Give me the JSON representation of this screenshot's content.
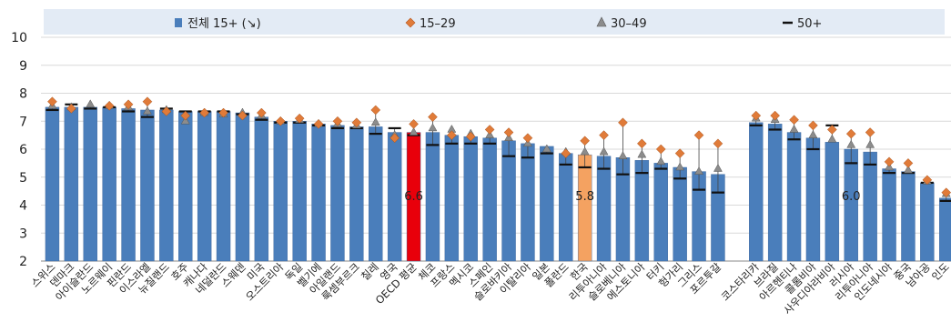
{
  "colors": {
    "total": "#4a7ebb",
    "oecd": "#e8000b",
    "korea": "#f4a261",
    "diamond": "#e07b39",
    "triangle": "#8c8c8c",
    "dash": "#111111",
    "legend_bg": "#e3ebf5",
    "grid": "#d9d9d9"
  },
  "chart_data": {
    "type": "bar",
    "ylim": [
      2,
      10
    ],
    "yticks": [
      "2",
      "3",
      "4",
      "5",
      "6",
      "7",
      "8",
      "9",
      "10"
    ],
    "legend": [
      {
        "label": "전체 15+ (↘)",
        "marker": "bar"
      },
      {
        "label": "15–29",
        "marker": "diamond"
      },
      {
        "label": "30–49",
        "marker": "triangle"
      },
      {
        "label": "50+",
        "marker": "dash"
      }
    ],
    "categories": [
      "스위스",
      "덴마크",
      "아이슬란드",
      "노르웨이",
      "핀란드",
      "이스라엘",
      "뉴질랜드",
      "호주",
      "캐나다",
      "네덜란드",
      "스웨덴",
      "미국",
      "오스트리아",
      "독일",
      "벨기에",
      "아일랜드",
      "룩셈부르크",
      "칠레",
      "영국",
      "OECD 평균",
      "체코",
      "프랑스",
      "멕시코",
      "스페인",
      "슬로바키아",
      "이탈리아",
      "일본",
      "폴란드",
      "한국",
      "리투아니아",
      "슬로베니아",
      "에스토니아",
      "터키",
      "헝가리",
      "그리스",
      "포르투갈",
      "",
      "코스타리카",
      "브라질",
      "아르헨티나",
      "콜롬비아",
      "사우디아라비아",
      "러시아",
      "리투아니아",
      "인도네시아",
      "중국",
      "남아공",
      "인도"
    ],
    "series": [
      {
        "name": "전체 15+ (↘)",
        "values": [
          7.5,
          7.5,
          7.5,
          7.5,
          7.45,
          7.4,
          7.4,
          7.35,
          7.35,
          7.35,
          7.3,
          7.15,
          7.0,
          7.0,
          6.9,
          6.85,
          6.8,
          6.8,
          6.6,
          6.6,
          6.6,
          6.5,
          6.45,
          6.4,
          6.3,
          6.2,
          6.1,
          5.85,
          5.8,
          5.75,
          5.7,
          5.6,
          5.5,
          5.35,
          5.2,
          5.1,
          null,
          6.95,
          6.9,
          6.6,
          6.4,
          6.25,
          6.0,
          5.9,
          5.3,
          5.2,
          4.8,
          4.25
        ]
      },
      {
        "name": "15–29",
        "values": [
          7.7,
          7.45,
          null,
          7.55,
          7.6,
          7.7,
          7.35,
          7.2,
          7.3,
          7.3,
          7.2,
          7.3,
          7.0,
          7.1,
          6.9,
          7.0,
          6.95,
          7.4,
          6.4,
          6.9,
          7.15,
          6.5,
          6.45,
          6.7,
          6.6,
          6.4,
          null,
          5.85,
          6.3,
          6.5,
          6.95,
          6.2,
          6.0,
          5.85,
          6.5,
          6.2,
          null,
          7.2,
          7.2,
          7.05,
          6.85,
          6.7,
          6.55,
          6.6,
          5.55,
          5.5,
          4.9,
          4.45
        ]
      },
      {
        "name": "30–49",
        "values": [
          7.55,
          7.5,
          7.6,
          7.55,
          7.5,
          7.35,
          7.4,
          7.0,
          7.3,
          7.25,
          7.3,
          7.2,
          7.0,
          7.05,
          6.9,
          6.9,
          6.85,
          6.95,
          6.5,
          6.6,
          6.75,
          6.7,
          6.55,
          6.5,
          6.4,
          6.2,
          6.0,
          5.9,
          5.9,
          5.9,
          5.75,
          5.8,
          5.55,
          5.35,
          5.2,
          5.3,
          null,
          7.1,
          7.05,
          6.7,
          6.5,
          6.35,
          6.15,
          6.15,
          5.35,
          5.25,
          4.85,
          4.4
        ]
      },
      {
        "name": "50+",
        "values": [
          7.4,
          7.6,
          7.45,
          7.5,
          7.35,
          7.15,
          7.45,
          7.35,
          7.35,
          7.35,
          7.25,
          7.05,
          6.95,
          6.95,
          6.85,
          6.75,
          6.75,
          6.55,
          6.75,
          6.5,
          6.15,
          6.2,
          6.2,
          6.2,
          5.75,
          5.7,
          5.85,
          5.45,
          5.35,
          5.3,
          5.1,
          5.15,
          5.3,
          4.95,
          4.55,
          4.45,
          null,
          6.85,
          6.7,
          6.35,
          6.0,
          6.85,
          5.5,
          5.45,
          5.15,
          5.15,
          4.8,
          4.15
        ]
      }
    ],
    "highlight": {
      "OECD 평균": "oecd",
      "한국": "korea"
    },
    "data_labels": [
      {
        "category": "OECD 평균",
        "text": "6.6"
      },
      {
        "category": "한국",
        "text": "5.8"
      },
      {
        "category": "러시아",
        "text": "6.0"
      }
    ],
    "grid": true,
    "legend_position": "top"
  }
}
